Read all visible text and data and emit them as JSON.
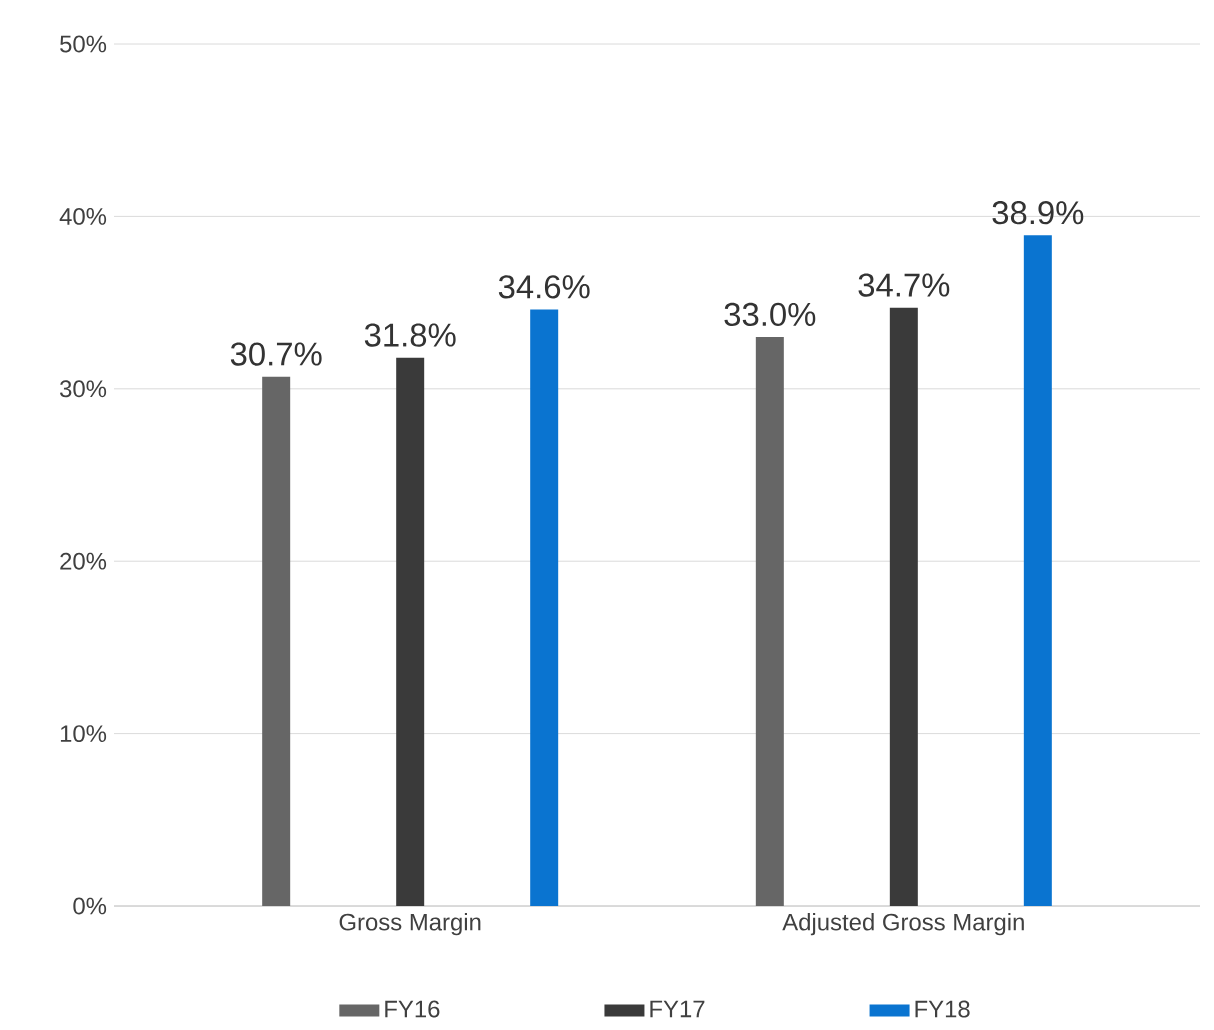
{
  "chart_data": {
    "type": "bar",
    "categories": [
      "Gross Margin",
      "Adjusted Gross Margin"
    ],
    "series": [
      {
        "name": "FY16",
        "color": "#666666",
        "values": [
          30.7,
          33.0
        ],
        "value_labels": [
          "30.7%",
          "33.0%"
        ]
      },
      {
        "name": "FY17",
        "color": "#3a3a3a",
        "values": [
          31.8,
          34.7
        ],
        "value_labels": [
          "31.8%",
          "34.7%"
        ]
      },
      {
        "name": "FY18",
        "color": "#0a74d0",
        "values": [
          34.6,
          38.9
        ],
        "value_labels": [
          "34.6%",
          "38.9%"
        ]
      }
    ],
    "ylim": [
      0,
      50
    ],
    "yticks": [
      {
        "value": 0,
        "label": "0%"
      },
      {
        "value": 10,
        "label": "10%"
      },
      {
        "value": 20,
        "label": "20%"
      },
      {
        "value": 30,
        "label": "30%"
      },
      {
        "value": 40,
        "label": "40%"
      },
      {
        "value": 50,
        "label": "50%"
      }
    ],
    "grid": "y",
    "legend": "bottom"
  }
}
